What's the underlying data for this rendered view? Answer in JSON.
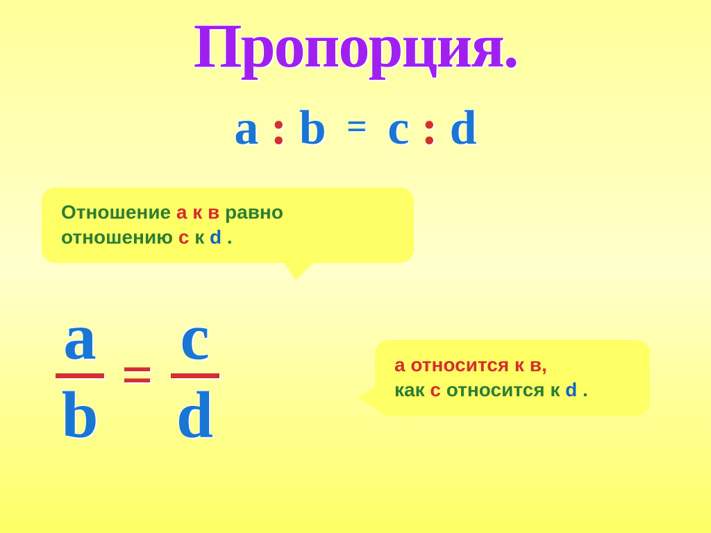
{
  "title": "Пропорция.",
  "ratio": {
    "a": "a",
    "b": "b",
    "c": "c",
    "d": "d",
    "colon": ":",
    "eq": "="
  },
  "callout1": {
    "p1": "Отношение ",
    "p2": "а к в",
    "p3": " равно отношению ",
    "p4": "с",
    "p5": " к ",
    "p6": "d",
    "p7": " ."
  },
  "fraction": {
    "a": "a",
    "b": "b",
    "c": "c",
    "d": "d",
    "eq": "="
  },
  "callout2": {
    "p1": "а относится к в,",
    "p2": "как ",
    "p3": "с",
    "p4": " относится к ",
    "p5": "d",
    "p6": " ."
  },
  "colors": {
    "background_top": "#ffff99",
    "background_bottom": "#ffff66",
    "title_color": "#a020f0",
    "letter_color": "#1976d2",
    "accent_red": "#d32f2f",
    "green": "#2e7d32",
    "callout_bg": "#ffff66"
  },
  "fontsizes": {
    "title": 90,
    "ratio": 70,
    "callout": 28,
    "fraction": 95
  }
}
